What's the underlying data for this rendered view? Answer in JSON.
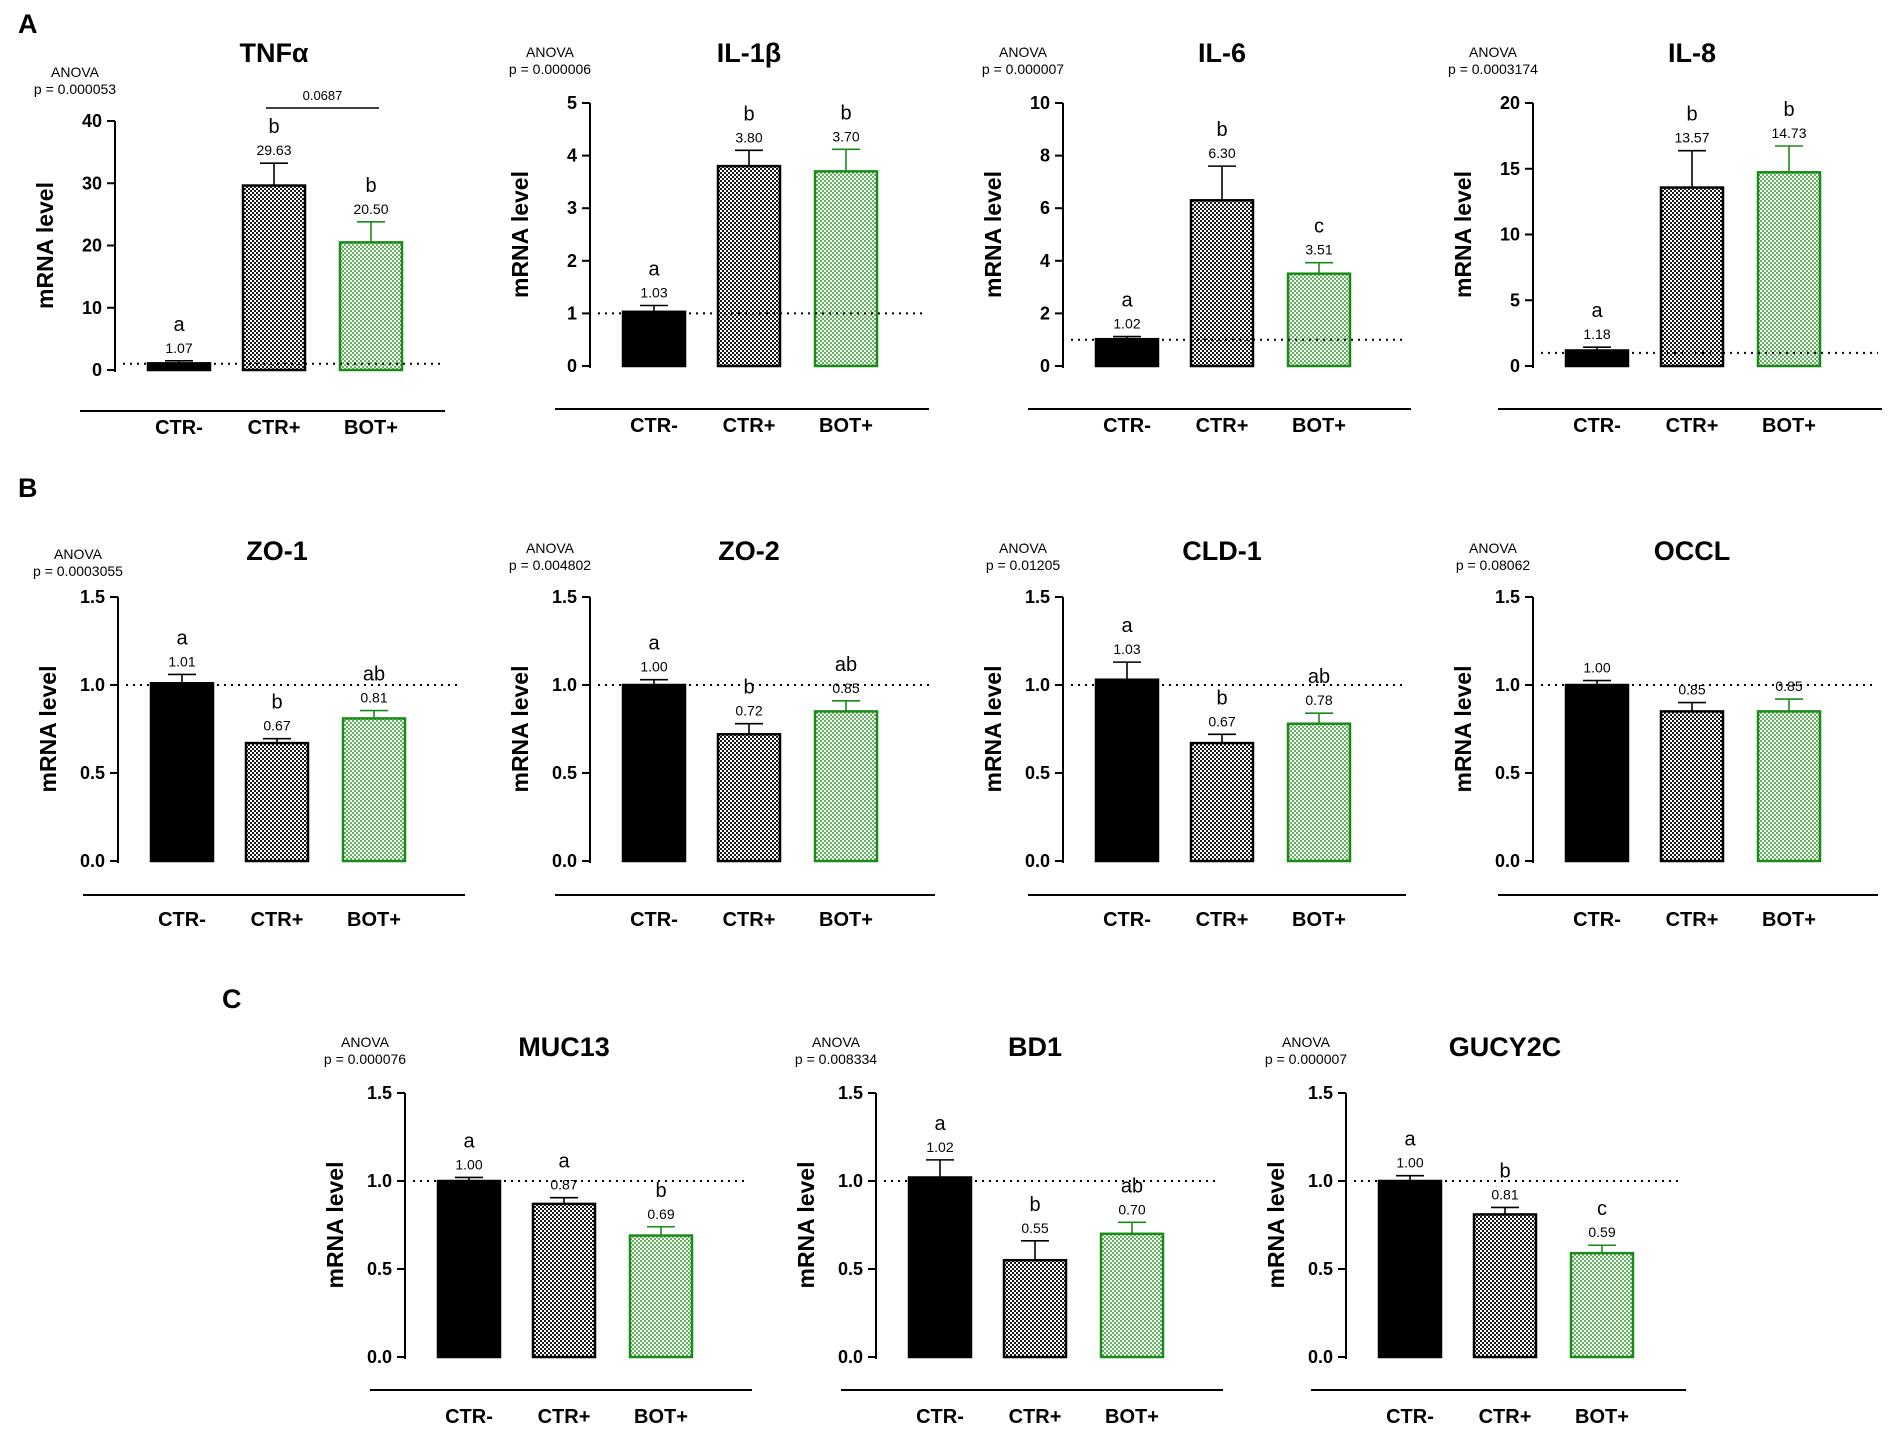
{
  "panel_labels": [
    "A",
    "B",
    "C"
  ],
  "x_categories": [
    "CTR-",
    "CTR+",
    "BOT+"
  ],
  "ylabel": "mRNA level",
  "anova_label": "ANOVA",
  "colors": {
    "ctr_neg": "#000000",
    "ctr_pos": "#000000",
    "bot_pos": "#1a8a1a",
    "bot_fill": "#aedba7",
    "dotted_line": "#000000"
  },
  "chart_data": [
    {
      "type": "bar",
      "panel": "A",
      "title": "TNFα",
      "anova_p": "p = 0.000053",
      "ylim": [
        0,
        40
      ],
      "yticks": [
        "0",
        "10",
        "20",
        "30",
        "40"
      ],
      "tick_values": [
        0,
        10,
        20,
        30,
        40
      ],
      "categories": [
        "CTR-",
        "CTR+",
        "BOT+"
      ],
      "values": [
        1.07,
        29.63,
        20.5
      ],
      "value_labels": [
        "1.07",
        "29.63",
        "20.50"
      ],
      "errors": [
        0.4,
        3.6,
        3.3
      ],
      "letters": [
        "a",
        "b",
        "b"
      ],
      "reference_line": 1,
      "bracket": {
        "from": 1,
        "to": 2,
        "label": "0.0687"
      }
    },
    {
      "type": "bar",
      "panel": "A",
      "title": "IL-1β",
      "anova_p": "p = 0.000006",
      "ylim": [
        0,
        5
      ],
      "yticks": [
        "0",
        "1",
        "2",
        "3",
        "4",
        "5"
      ],
      "tick_values": [
        0,
        1,
        2,
        3,
        4,
        5
      ],
      "categories": [
        "CTR-",
        "CTR+",
        "BOT+"
      ],
      "values": [
        1.03,
        3.8,
        3.7
      ],
      "value_labels": [
        "1.03",
        "3.80",
        "3.70"
      ],
      "errors": [
        0.12,
        0.3,
        0.42
      ],
      "letters": [
        "a",
        "b",
        "b"
      ],
      "reference_line": 1
    },
    {
      "type": "bar",
      "panel": "A",
      "title": "IL-6",
      "anova_p": "p = 0.000007",
      "ylim": [
        0,
        10
      ],
      "yticks": [
        "0",
        "2",
        "4",
        "6",
        "8",
        "10"
      ],
      "tick_values": [
        0,
        2,
        4,
        6,
        8,
        10
      ],
      "categories": [
        "CTR-",
        "CTR+",
        "BOT+"
      ],
      "values": [
        1.02,
        6.3,
        3.51
      ],
      "value_labels": [
        "1.02",
        "6.30",
        "3.51"
      ],
      "errors": [
        0.1,
        1.3,
        0.42
      ],
      "letters": [
        "a",
        "b",
        "c"
      ],
      "reference_line": 1
    },
    {
      "type": "bar",
      "panel": "A",
      "title": "IL-8",
      "anova_p": "p = 0.0003174",
      "ylim": [
        0,
        20
      ],
      "yticks": [
        "0",
        "5",
        "10",
        "15",
        "20"
      ],
      "tick_values": [
        0,
        5,
        10,
        15,
        20
      ],
      "categories": [
        "CTR-",
        "CTR+",
        "BOT+"
      ],
      "values": [
        1.18,
        13.57,
        14.73
      ],
      "value_labels": [
        "1.18",
        "13.57",
        "14.73"
      ],
      "errors": [
        0.25,
        2.8,
        2.0
      ],
      "letters": [
        "a",
        "b",
        "b"
      ],
      "reference_line": 1
    },
    {
      "type": "bar",
      "panel": "B",
      "title": "ZO-1",
      "anova_p": "p = 0.0003055",
      "ylim": [
        0,
        1.5
      ],
      "yticks": [
        "0.0",
        "0.5",
        "1.0",
        "1.5"
      ],
      "tick_values": [
        0,
        0.5,
        1,
        1.5
      ],
      "categories": [
        "CTR-",
        "CTR+",
        "BOT+"
      ],
      "values": [
        1.01,
        0.67,
        0.81
      ],
      "value_labels": [
        "1.01",
        "0.67",
        "0.81"
      ],
      "errors": [
        0.05,
        0.025,
        0.045
      ],
      "letters": [
        "a",
        "b",
        "ab"
      ],
      "reference_line": 1
    },
    {
      "type": "bar",
      "panel": "B",
      "title": "ZO-2",
      "anova_p": "p = 0.004802",
      "ylim": [
        0,
        1.5
      ],
      "yticks": [
        "0.0",
        "0.5",
        "1.0",
        "1.5"
      ],
      "tick_values": [
        0,
        0.5,
        1,
        1.5
      ],
      "categories": [
        "CTR-",
        "CTR+",
        "BOT+"
      ],
      "values": [
        1.0,
        0.72,
        0.85
      ],
      "value_labels": [
        "1.00",
        "0.72",
        "0.85"
      ],
      "errors": [
        0.03,
        0.06,
        0.06
      ],
      "letters": [
        "a",
        "b",
        "ab"
      ],
      "reference_line": 1
    },
    {
      "type": "bar",
      "panel": "B",
      "title": "CLD-1",
      "anova_p": "p = 0.01205",
      "ylim": [
        0,
        1.5
      ],
      "yticks": [
        "0.0",
        "0.5",
        "1.0",
        "1.5"
      ],
      "tick_values": [
        0,
        0.5,
        1,
        1.5
      ],
      "categories": [
        "CTR-",
        "CTR+",
        "BOT+"
      ],
      "values": [
        1.03,
        0.67,
        0.78
      ],
      "value_labels": [
        "1.03",
        "0.67",
        "0.78"
      ],
      "errors": [
        0.1,
        0.05,
        0.06
      ],
      "letters": [
        "a",
        "b",
        "ab"
      ],
      "reference_line": 1
    },
    {
      "type": "bar",
      "panel": "B",
      "title": "OCCL",
      "anova_p": "p = 0.08062",
      "ylim": [
        0,
        1.5
      ],
      "yticks": [
        "0.0",
        "0.5",
        "1.0",
        "1.5"
      ],
      "tick_values": [
        0,
        0.5,
        1,
        1.5
      ],
      "categories": [
        "CTR-",
        "CTR+",
        "BOT+"
      ],
      "values": [
        1.0,
        0.85,
        0.85
      ],
      "value_labels": [
        "1.00",
        "0.85",
        "0.85"
      ],
      "errors": [
        0.025,
        0.05,
        0.07
      ],
      "letters": [
        "",
        "",
        ""
      ],
      "reference_line": 1
    },
    {
      "type": "bar",
      "panel": "C",
      "title": "MUC13",
      "anova_p": "p = 0.000076",
      "ylim": [
        0,
        1.5
      ],
      "yticks": [
        "0.0",
        "0.5",
        "1.0",
        "1.5"
      ],
      "tick_values": [
        0,
        0.5,
        1,
        1.5
      ],
      "categories": [
        "CTR-",
        "CTR+",
        "BOT+"
      ],
      "values": [
        1.0,
        0.87,
        0.69
      ],
      "value_labels": [
        "1.00",
        "0.87",
        "0.69"
      ],
      "errors": [
        0.02,
        0.035,
        0.05
      ],
      "letters": [
        "a",
        "a",
        "b"
      ],
      "reference_line": 1
    },
    {
      "type": "bar",
      "panel": "C",
      "title": "BD1",
      "anova_p": "p = 0.008334",
      "ylim": [
        0,
        1.5
      ],
      "yticks": [
        "0.0",
        "0.5",
        "1.0",
        "1.5"
      ],
      "tick_values": [
        0,
        0.5,
        1,
        1.5
      ],
      "categories": [
        "CTR-",
        "CTR+",
        "BOT+"
      ],
      "values": [
        1.02,
        0.55,
        0.7
      ],
      "value_labels": [
        "1.02",
        "0.55",
        "0.70"
      ],
      "errors": [
        0.1,
        0.11,
        0.065
      ],
      "letters": [
        "a",
        "b",
        "ab"
      ],
      "reference_line": 1
    },
    {
      "type": "bar",
      "panel": "C",
      "title": "GUCY2C",
      "anova_p": "p = 0.000007",
      "ylim": [
        0,
        1.5
      ],
      "yticks": [
        "0.0",
        "0.5",
        "1.0",
        "1.5"
      ],
      "tick_values": [
        0,
        0.5,
        1,
        1.5
      ],
      "categories": [
        "CTR-",
        "CTR+",
        "BOT+"
      ],
      "values": [
        1.0,
        0.81,
        0.59
      ],
      "value_labels": [
        "1.00",
        "0.81",
        "0.59"
      ],
      "errors": [
        0.03,
        0.04,
        0.045
      ],
      "letters": [
        "a",
        "b",
        "c"
      ],
      "reference_line": 1
    }
  ]
}
